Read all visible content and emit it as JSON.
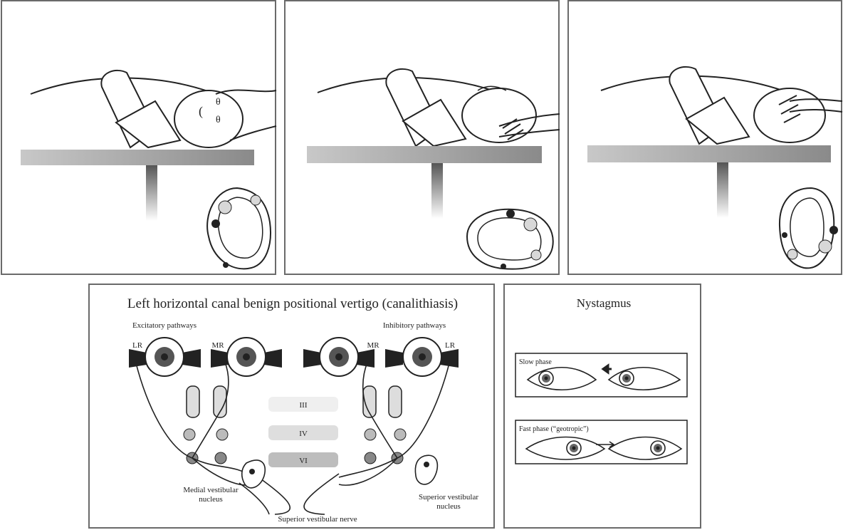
{
  "main_title": "Left horizontal canal benign positional vertigo (canalithiasis)",
  "pathways": {
    "excitatory": "Excitatory pathways",
    "inhibitory": "Inhibitory pathways"
  },
  "muscles": {
    "lr": "LR",
    "mr": "MR"
  },
  "nuclei": {
    "iii": "III",
    "iv": "IV",
    "vi": "VI"
  },
  "labels": {
    "medial_vestibular_nucleus": [
      "Medial vestibular",
      "nucleus"
    ],
    "superior_vestibular_nucleus": [
      "Superior vestibular",
      "nucleus"
    ],
    "superior_vestibular_nerve": "Superior vestibular nerve"
  },
  "nystagmus": {
    "title": "Nystagmus",
    "slow_phase": "Slow phase",
    "fast_phase": "Fast phase (“geotropic”)"
  }
}
